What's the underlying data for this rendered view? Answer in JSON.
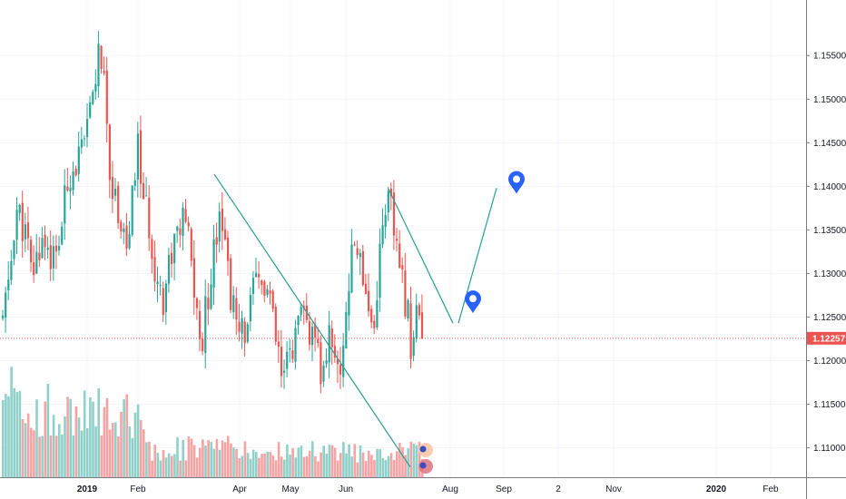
{
  "chart_data": {
    "type": "candlestick",
    "instrument_hint": "daily price with volume",
    "y_axis": {
      "ticks": [
        "1.15500",
        "1.15000",
        "1.14500",
        "1.14000",
        "1.13500",
        "1.13000",
        "1.12500",
        "1.12000",
        "1.11500",
        "1.11000"
      ],
      "tick_values": [
        1.155,
        1.15,
        1.145,
        1.14,
        1.135,
        1.13,
        1.125,
        1.12,
        1.115,
        1.11
      ],
      "range": [
        1.1085,
        1.1595
      ]
    },
    "x_axis": {
      "labels": [
        "2019",
        "Feb",
        "Apr",
        "May",
        "Jun",
        "Aug",
        "Sep",
        "2",
        "Nov",
        "2020",
        "Feb"
      ],
      "bold_labels": [
        "2019",
        "2020"
      ]
    },
    "last_price": {
      "label": "1.12257",
      "value": 1.12257,
      "color": "#ef5350"
    },
    "colors": {
      "up": "#26a69a",
      "down": "#ef5350",
      "volume_up": "#8fd0c9",
      "volume_down": "#f5a3a3",
      "trendline": "#2a9d8f",
      "marker": "#2962ff",
      "grid": "#f0f3fa"
    },
    "trendlines": [
      {
        "from": {
          "label": "late Mar",
          "y": 1.1414
        },
        "to": {
          "label": "early Jul",
          "y": 1.1078
        }
      },
      {
        "from": {
          "label": "mid Jun",
          "y": 1.1397
        },
        "to": {
          "label": "late Jul",
          "y": 1.1243
        }
      },
      {
        "from": {
          "label": "late Jul",
          "y": 1.1243
        },
        "to": {
          "label": "early Sep",
          "y": 1.1398
        }
      }
    ],
    "markers": [
      {
        "name": "target-marker-upper",
        "label": "early Sep",
        "y": 1.1405
      },
      {
        "name": "target-marker-lower",
        "label": "mid Aug",
        "y": 1.1268
      }
    ]
  }
}
